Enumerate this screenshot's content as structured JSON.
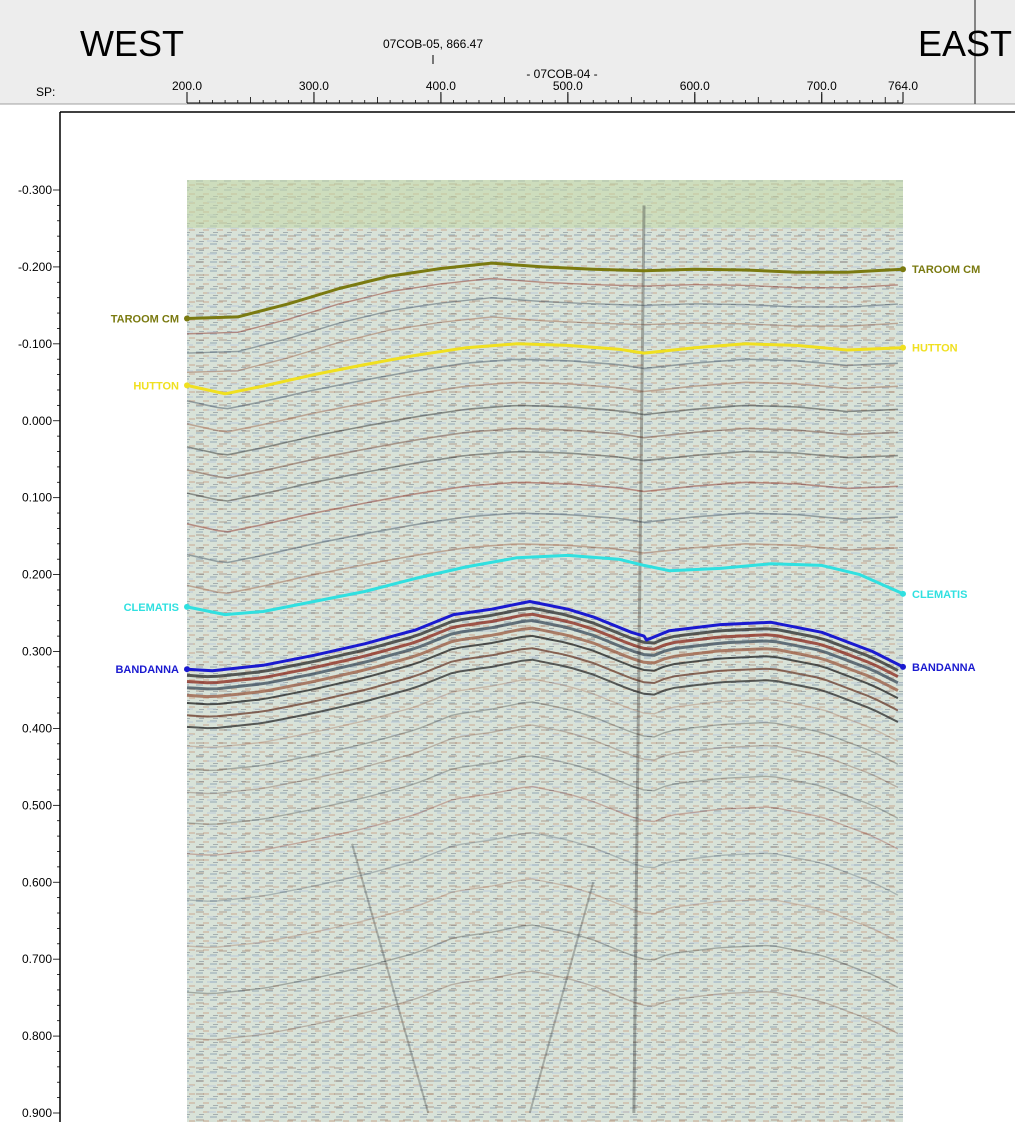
{
  "header": {
    "west_label": "WEST",
    "east_label": "EAST",
    "sp_label": "SP:",
    "tie_top": "07COB-05, 866.47",
    "line_name": "- 07COB-04 -"
  },
  "chart_data": {
    "type": "line",
    "x_axis": {
      "label": "SP:",
      "range": [
        200.0,
        764.0
      ],
      "ticks": [
        "200.0",
        "300.0",
        "400.0",
        "500.0",
        "600.0",
        "700.0",
        "764.0"
      ],
      "tick_values": [
        200,
        300,
        400,
        500,
        600,
        700,
        764
      ]
    },
    "y_axis": {
      "range": [
        -0.3,
        0.9
      ],
      "inverted": true,
      "ticks": [
        "-0.300",
        "-0.200",
        "-0.100",
        "0.000",
        "0.100",
        "0.200",
        "0.300",
        "0.400",
        "0.500",
        "0.600",
        "0.700",
        "0.800",
        "0.900"
      ],
      "tick_values": [
        -0.3,
        -0.2,
        -0.1,
        0.0,
        0.1,
        0.2,
        0.3,
        0.4,
        0.5,
        0.6,
        0.7,
        0.8,
        0.9
      ]
    },
    "well_tie_sp": 600,
    "series": [
      {
        "name": "TAROOM CM",
        "color": "#7a7a10",
        "x": [
          200,
          240,
          280,
          320,
          360,
          400,
          440,
          480,
          520,
          560,
          600,
          640,
          680,
          720,
          764
        ],
        "y": [
          -0.133,
          -0.135,
          -0.152,
          -0.172,
          -0.188,
          -0.198,
          -0.205,
          -0.2,
          -0.197,
          -0.195,
          -0.197,
          -0.196,
          -0.193,
          -0.193,
          -0.197
        ]
      },
      {
        "name": "HUTTON",
        "color": "#f0e020",
        "x": [
          200,
          230,
          260,
          300,
          340,
          380,
          420,
          460,
          500,
          540,
          560,
          600,
          640,
          680,
          720,
          764
        ],
        "y": [
          -0.046,
          -0.035,
          -0.045,
          -0.06,
          -0.073,
          -0.085,
          -0.095,
          -0.1,
          -0.098,
          -0.093,
          -0.088,
          -0.095,
          -0.1,
          -0.098,
          -0.092,
          -0.095
        ]
      },
      {
        "name": "CLEMATIS",
        "color": "#30e0e0",
        "x": [
          200,
          230,
          260,
          300,
          340,
          380,
          420,
          460,
          500,
          540,
          560,
          580,
          620,
          660,
          700,
          730,
          764
        ],
        "y": [
          0.242,
          0.252,
          0.248,
          0.235,
          0.222,
          0.205,
          0.19,
          0.178,
          0.175,
          0.18,
          0.188,
          0.195,
          0.192,
          0.186,
          0.188,
          0.2,
          0.225
        ]
      },
      {
        "name": "BANDANNA",
        "color": "#1a1ad0",
        "x": [
          200,
          220,
          260,
          300,
          340,
          380,
          410,
          440,
          470,
          500,
          520,
          550,
          560,
          562,
          580,
          620,
          660,
          700,
          740,
          764
        ],
        "y": [
          0.323,
          0.325,
          0.318,
          0.305,
          0.29,
          0.272,
          0.252,
          0.245,
          0.235,
          0.245,
          0.255,
          0.275,
          0.28,
          0.285,
          0.273,
          0.265,
          0.262,
          0.275,
          0.3,
          0.32
        ]
      }
    ]
  }
}
